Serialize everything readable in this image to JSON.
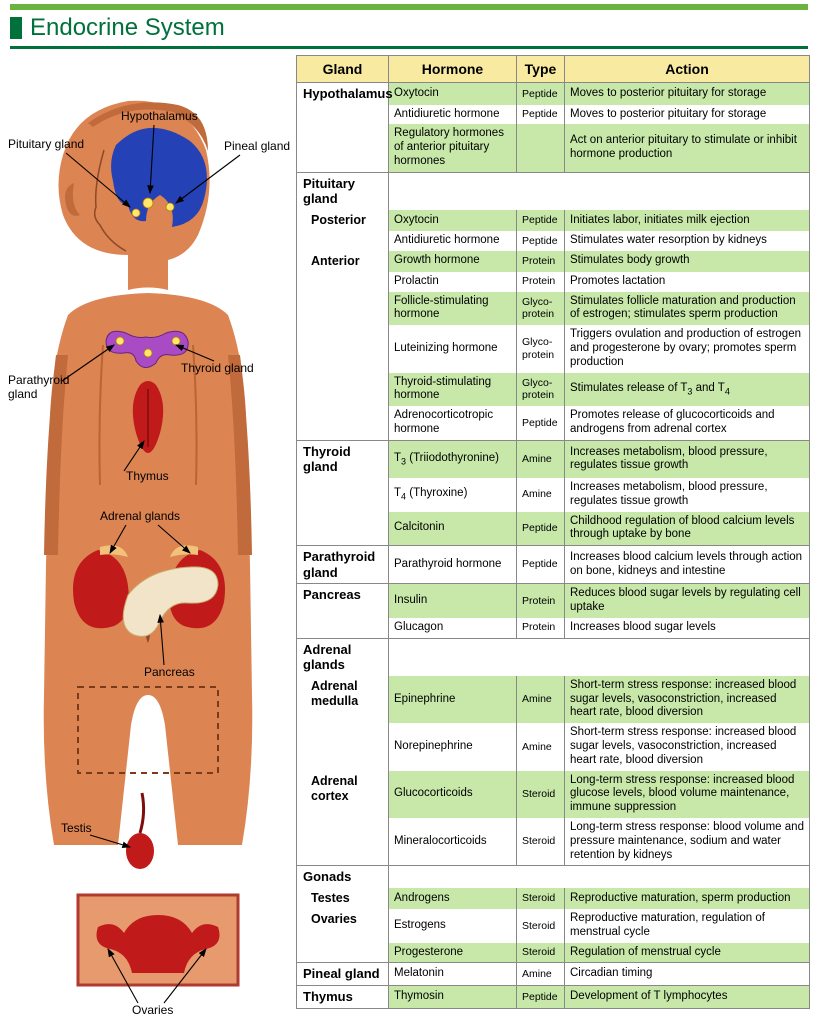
{
  "page": {
    "title": "Endocrine System",
    "accent_bar": "#6ab33f",
    "title_color": "#00713a"
  },
  "figure": {
    "labels": {
      "hypothalamus": "Hypothalamus",
      "pituitary": "Pituitary gland",
      "pineal": "Pineal gland",
      "thyroid": "Thyroid gland",
      "parathyroid": "Parathyroid\ngland",
      "thymus": "Thymus",
      "adrenal": "Adrenal glands",
      "pancreas": "Pancreas",
      "testis": "Testis",
      "ovaries": "Ovaries"
    }
  },
  "table": {
    "colors": {
      "header_bg": "#f8eaa0",
      "shade": "#c7e8a9",
      "border": "#888888"
    },
    "headers": {
      "gland": "Gland",
      "hormone": "Hormone",
      "type": "Type",
      "action": "Action"
    },
    "rows": [
      {
        "gland": "Hypothalamus",
        "gland_style": "gland",
        "header": true,
        "hormone": "Oxytocin",
        "type": "Peptide",
        "action": "Moves to posterior pituitary for storage",
        "shade": true
      },
      {
        "gland": "",
        "hormone": "Antidiuretic hormone",
        "type": "Peptide",
        "action": "Moves to posterior pituitary for storage",
        "shade": false
      },
      {
        "gland": "",
        "hormone": "Regulatory hormones of anterior pituitary hormones",
        "type": "",
        "action": "Act on anterior pituitary to stimulate or inhibit hormone production",
        "shade": true
      },
      {
        "gland": "Pituitary gland",
        "gland_style": "gland",
        "header": true,
        "hormone": "",
        "type": "",
        "action": "",
        "shade": false,
        "nohormone": true
      },
      {
        "gland": "Posterior",
        "gland_style": "subgland",
        "hormone": "Oxytocin",
        "type": "Peptide",
        "action": "Initiates labor, initiates milk ejection",
        "shade": true
      },
      {
        "gland": "",
        "hormone": "Antidiuretic hormone",
        "type": "Peptide",
        "action": "Stimulates water resorption by kidneys",
        "shade": false
      },
      {
        "gland": "Anterior",
        "gland_style": "subgland",
        "hormone": "Growth hormone",
        "type": "Protein",
        "action": "Stimulates body growth",
        "shade": true
      },
      {
        "gland": "",
        "hormone": "Prolactin",
        "type": "Protein",
        "action": "Promotes lactation",
        "shade": false
      },
      {
        "gland": "",
        "hormone": "Follicle-stimulating hormone",
        "type": "Glyco-protein",
        "action": "Stimulates follicle maturation and production of estrogen; stimulates sperm production",
        "shade": true
      },
      {
        "gland": "",
        "hormone": "Luteinizing hormone",
        "type": "Glyco-protein",
        "action": "Triggers ovulation and production of estrogen and progesterone by ovary; promotes sperm production",
        "shade": false
      },
      {
        "gland": "",
        "hormone": "Thyroid-stimulating hormone",
        "type": "Glyco-protein",
        "action": "Stimulates release of T₃ and T₄",
        "shade": true,
        "raw_action": true
      },
      {
        "gland": "",
        "hormone": "Adrenocorticotropic hormone",
        "type": "Peptide",
        "action": "Promotes release of glucocorticoids and androgens from adrenal cortex",
        "shade": false
      },
      {
        "gland": "Thyroid gland",
        "gland_style": "gland",
        "header": true,
        "hormone": "T₃ (Triiodothyronine)",
        "type": "Amine",
        "action": "Increases metabolism, blood pressure, regulates tissue growth",
        "shade": true,
        "raw_hormone": true
      },
      {
        "gland": "",
        "hormone": "T₄ (Thyroxine)",
        "type": "Amine",
        "action": "Increases metabolism, blood pressure, regulates tissue growth",
        "shade": false,
        "raw_hormone": true
      },
      {
        "gland": "",
        "hormone": "Calcitonin",
        "type": "Peptide",
        "action": "Childhood regulation of blood calcium levels through uptake by bone",
        "shade": true
      },
      {
        "gland": "Parathyroid gland",
        "gland_style": "gland",
        "header": true,
        "hormone": "Parathyroid hormone",
        "type": "Peptide",
        "action": "Increases blood calcium levels through action on bone, kidneys and intestine",
        "shade": false
      },
      {
        "gland": "Pancreas",
        "gland_style": "gland",
        "header": true,
        "hormone": "Insulin",
        "type": "Protein",
        "action": "Reduces blood sugar levels by regulating cell uptake",
        "shade": true
      },
      {
        "gland": "",
        "hormone": "Glucagon",
        "type": "Protein",
        "action": "Increases blood sugar levels",
        "shade": false
      },
      {
        "gland": "Adrenal glands",
        "gland_style": "gland",
        "header": true,
        "hormone": "",
        "type": "",
        "action": "",
        "shade": false,
        "nohormone": true
      },
      {
        "gland": "Adrenal medulla",
        "gland_style": "subgland",
        "hormone": "Epinephrine",
        "type": "Amine",
        "action": "Short-term stress response: increased blood sugar levels, vasoconstriction, increased heart rate, blood diversion",
        "shade": true
      },
      {
        "gland": "",
        "hormone": "Norepinephrine",
        "type": "Amine",
        "action": "Short-term stress response: increased blood sugar levels, vasoconstriction, increased heart rate, blood diversion",
        "shade": false
      },
      {
        "gland": "Adrenal cortex",
        "gland_style": "subgland",
        "hormone": "Glucocorticoids",
        "type": "Steroid",
        "action": "Long-term stress response: increased blood glucose levels, blood volume maintenance, immune suppression",
        "shade": true
      },
      {
        "gland": "",
        "hormone": "Mineralocorticoids",
        "type": "Steroid",
        "action": "Long-term stress response: blood volume  and pressure maintenance, sodium and water retention by kidneys",
        "shade": false
      },
      {
        "gland": "Gonads",
        "gland_style": "gland",
        "header": true,
        "hormone": "",
        "type": "",
        "action": "",
        "shade": false,
        "nohormone": true
      },
      {
        "gland": "Testes",
        "gland_style": "subgland",
        "hormone": "Androgens",
        "type": "Steroid",
        "action": "Reproductive maturation, sperm production",
        "shade": true
      },
      {
        "gland": "Ovaries",
        "gland_style": "subgland",
        "hormone": "Estrogens",
        "type": "Steroid",
        "action": "Reproductive maturation, regulation of menstrual cycle",
        "shade": false
      },
      {
        "gland": "",
        "hormone": "Progesterone",
        "type": "Steroid",
        "action": "Regulation of menstrual cycle",
        "shade": true
      },
      {
        "gland": "Pineal gland",
        "gland_style": "gland",
        "header": true,
        "hormone": "Melatonin",
        "type": "Amine",
        "action": "Circadian timing",
        "shade": false
      },
      {
        "gland": "Thymus",
        "gland_style": "gland",
        "header": true,
        "hormone": "Thymosin",
        "type": "Peptide",
        "action": "Development of T lymphocytes",
        "shade": true,
        "last": true
      }
    ]
  }
}
